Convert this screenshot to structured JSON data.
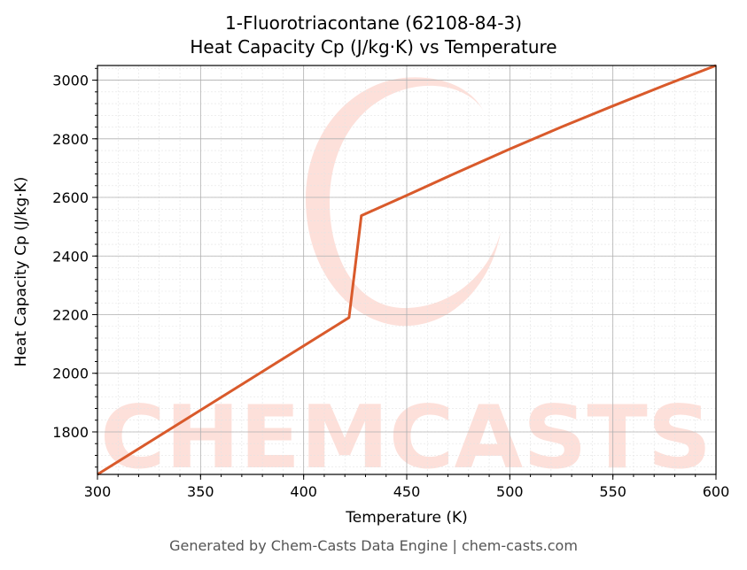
{
  "title_line1": "1-Fluorotriacontane (62108-84-3)",
  "title_line2": "Heat Capacity Cp (J/kg·K) vs Temperature",
  "footer": "Generated by Chem-Casts Data Engine | chem-casts.com",
  "watermark": "CHEMCASTS",
  "colors": {
    "line": "#d95a2b",
    "watermark": "#fde0da",
    "grid": "#b0b0b0"
  },
  "chart_data": {
    "type": "line",
    "xlabel": "Temperature (K)",
    "ylabel": "Heat Capacity Cp (J/kg·K)",
    "xlim": [
      300,
      600
    ],
    "ylim": [
      1655,
      3050
    ],
    "xticks": [
      300,
      350,
      400,
      450,
      500,
      550,
      600
    ],
    "yticks": [
      1800,
      2000,
      2200,
      2400,
      2600,
      2800,
      3000
    ],
    "grid": true,
    "series": [
      {
        "x": [
          300,
          422,
          428,
          450,
          475,
          500,
          525,
          550,
          575,
          600
        ],
        "y": [
          1655,
          2190,
          2538,
          2607,
          2687,
          2765,
          2840,
          2912,
          2982,
          3050
        ]
      }
    ]
  }
}
